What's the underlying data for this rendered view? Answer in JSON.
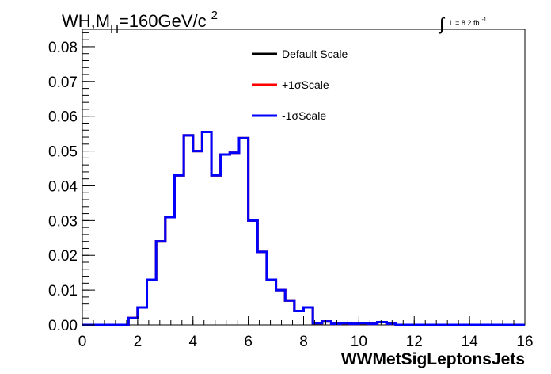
{
  "chart_data": {
    "type": "line",
    "title_main": "WH,M",
    "title_sub": "H",
    "title_rest": "=160GeV/c",
    "title_sup": "2",
    "lumi_label": "L = 8.2 fb",
    "lumi_sup": "-1",
    "xlabel": "WWMetSigLeptonsJets",
    "ylabel": "",
    "xlim": [
      0,
      16
    ],
    "ylim": [
      0,
      0.085
    ],
    "xticks": [
      "0",
      "2",
      "4",
      "6",
      "8",
      "10",
      "12",
      "14",
      "16"
    ],
    "yticks": [
      "0.00",
      "0.01",
      "0.02",
      "0.03",
      "0.04",
      "0.05",
      "0.06",
      "0.07",
      "0.08"
    ],
    "legend_position": "top-right",
    "bin_edges": [
      0,
      0.333,
      0.667,
      1,
      1.333,
      1.667,
      2,
      2.333,
      2.667,
      3,
      3.333,
      3.667,
      4,
      4.333,
      4.667,
      5,
      5.333,
      5.667,
      6,
      6.333,
      6.667,
      7,
      7.333,
      7.667,
      8,
      8.333,
      8.667,
      9,
      9.333,
      9.667,
      10,
      10.333,
      10.667,
      11,
      11.333,
      11.667,
      12,
      12.333,
      12.667,
      13,
      13.333,
      13.667,
      14,
      14.333,
      14.667,
      15,
      15.333,
      15.667,
      16
    ],
    "series": [
      {
        "name": "Default Scale",
        "color": "#000000",
        "values": [
          0,
          0,
          0,
          0,
          0,
          0.002,
          0.005,
          0.013,
          0.024,
          0.031,
          0.043,
          0.0545,
          0.05,
          0.0555,
          0.043,
          0.049,
          0.0495,
          0.0537,
          0.03,
          0.021,
          0.013,
          0.01,
          0.007,
          0.004,
          0.005,
          0.0005,
          0.001,
          0.0003,
          0.0005,
          0.0003,
          0.0005,
          0.0003,
          0.0008,
          0.0003,
          0,
          0,
          0,
          0,
          0,
          0,
          0,
          0,
          0,
          0,
          0,
          0,
          0,
          0
        ]
      },
      {
        "name": "+1σScale",
        "color": "#ff0000",
        "values": [
          0,
          0,
          0,
          0,
          0,
          0.002,
          0.005,
          0.013,
          0.024,
          0.031,
          0.043,
          0.0545,
          0.05,
          0.0555,
          0.043,
          0.049,
          0.0495,
          0.0537,
          0.03,
          0.021,
          0.013,
          0.01,
          0.007,
          0.004,
          0.005,
          0.0005,
          0.001,
          0.0003,
          0.0005,
          0.0003,
          0.0005,
          0.0003,
          0.0008,
          0.0003,
          0,
          0,
          0,
          0,
          0,
          0,
          0,
          0,
          0,
          0,
          0,
          0,
          0,
          0
        ]
      },
      {
        "name": "-1σScale",
        "color": "#0000ff",
        "values": [
          0,
          0,
          0,
          0,
          0,
          0.002,
          0.005,
          0.013,
          0.024,
          0.031,
          0.043,
          0.0545,
          0.05,
          0.0555,
          0.043,
          0.049,
          0.0495,
          0.0537,
          0.03,
          0.021,
          0.013,
          0.01,
          0.007,
          0.004,
          0.005,
          0.0005,
          0.001,
          0.0003,
          0.0005,
          0.0003,
          0.0005,
          0.0003,
          0.0008,
          0.0003,
          0,
          0,
          0,
          0,
          0,
          0,
          0,
          0,
          0,
          0,
          0,
          0,
          0,
          0
        ]
      }
    ]
  }
}
